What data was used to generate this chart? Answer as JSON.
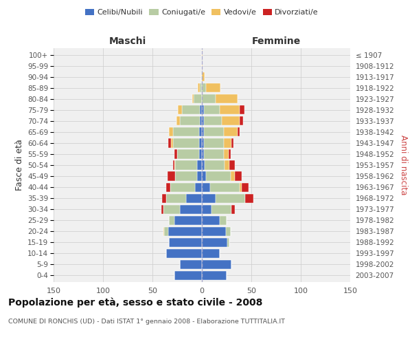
{
  "age_groups": [
    "0-4",
    "5-9",
    "10-14",
    "15-19",
    "20-24",
    "25-29",
    "30-34",
    "35-39",
    "40-44",
    "45-49",
    "50-54",
    "55-59",
    "60-64",
    "65-69",
    "70-74",
    "75-79",
    "80-84",
    "85-89",
    "90-94",
    "95-99",
    "100+"
  ],
  "birth_years": [
    "2003-2007",
    "1998-2002",
    "1993-1997",
    "1988-1992",
    "1983-1987",
    "1978-1982",
    "1973-1977",
    "1968-1972",
    "1963-1967",
    "1958-1962",
    "1953-1957",
    "1948-1952",
    "1943-1947",
    "1938-1942",
    "1933-1937",
    "1928-1932",
    "1923-1927",
    "1918-1922",
    "1913-1917",
    "1908-1912",
    "≤ 1907"
  ],
  "males": {
    "celibi": [
      28,
      22,
      36,
      33,
      34,
      28,
      22,
      16,
      7,
      5,
      5,
      3,
      3,
      3,
      2,
      2,
      0,
      0,
      0,
      0,
      0
    ],
    "coniugati": [
      0,
      0,
      0,
      0,
      4,
      5,
      17,
      20,
      25,
      22,
      22,
      22,
      26,
      26,
      20,
      18,
      8,
      2,
      1,
      0,
      0
    ],
    "vedovi": [
      0,
      0,
      0,
      0,
      1,
      0,
      0,
      0,
      0,
      0,
      1,
      0,
      2,
      4,
      4,
      4,
      2,
      2,
      0,
      0,
      0
    ],
    "divorziati": [
      0,
      0,
      0,
      0,
      0,
      0,
      2,
      4,
      4,
      8,
      1,
      3,
      3,
      0,
      0,
      0,
      0,
      0,
      0,
      0,
      0
    ]
  },
  "females": {
    "nubili": [
      25,
      30,
      18,
      26,
      24,
      18,
      10,
      14,
      8,
      4,
      3,
      2,
      2,
      2,
      2,
      2,
      0,
      0,
      0,
      0,
      0
    ],
    "coniugate": [
      0,
      0,
      0,
      2,
      5,
      7,
      20,
      30,
      30,
      25,
      20,
      20,
      20,
      20,
      18,
      16,
      14,
      4,
      0,
      0,
      0
    ],
    "vedove": [
      0,
      0,
      0,
      0,
      0,
      0,
      0,
      0,
      2,
      4,
      5,
      5,
      8,
      14,
      18,
      20,
      22,
      15,
      3,
      1,
      1
    ],
    "divorziate": [
      0,
      0,
      0,
      0,
      0,
      0,
      3,
      8,
      7,
      7,
      5,
      2,
      2,
      2,
      4,
      5,
      0,
      0,
      0,
      0,
      0
    ]
  },
  "colors": {
    "celibi": "#4472c4",
    "coniugati": "#b8cca4",
    "vedovi": "#f0c060",
    "divorziati": "#cc2222"
  },
  "xlim": 150,
  "title": "Popolazione per età, sesso e stato civile - 2008",
  "subtitle": "COMUNE DI RONCHIS (UD) - Dati ISTAT 1° gennaio 2008 - Elaborazione TUTTITALIA.IT",
  "ylabel_left": "Fasce di età",
  "ylabel_right": "Anni di nascita",
  "xlabel_left": "Maschi",
  "xlabel_right": "Femmine",
  "background_color": "#f0f0f0"
}
